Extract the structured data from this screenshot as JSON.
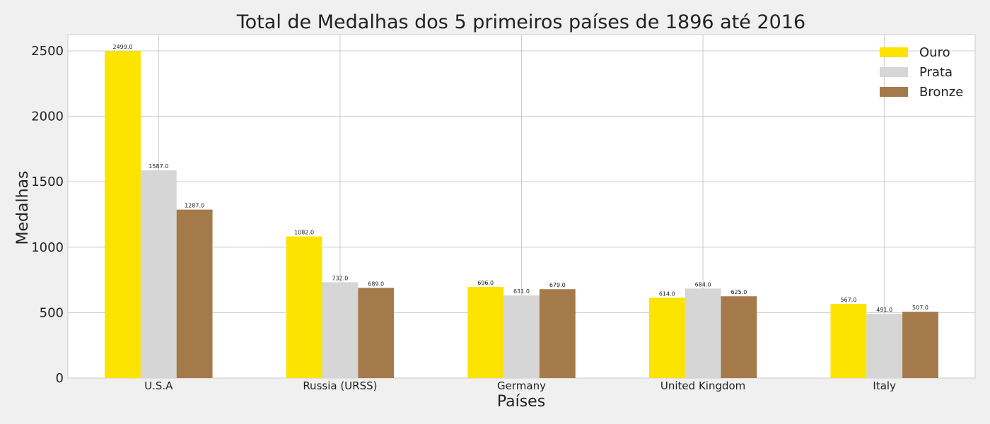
{
  "chart_data": {
    "type": "bar",
    "title": "Total de Medalhas dos 5 primeiros países de 1896 até 2016",
    "xlabel": "Países",
    "ylabel": "Medalhas",
    "categories": [
      "U.S.A",
      "Russia (URSS)",
      "Germany",
      "United Kingdom",
      "Italy"
    ],
    "series": [
      {
        "name": "Ouro",
        "color": "#fce300",
        "values": [
          2499,
          1082,
          696,
          614,
          567
        ],
        "labels": [
          "2499.0",
          "1082.0",
          "696.0",
          "614.0",
          "567.0"
        ]
      },
      {
        "name": "Prata",
        "color": "#d6d6d6",
        "values": [
          1587,
          732,
          631,
          684,
          491
        ],
        "labels": [
          "1587.0",
          "732.0",
          "631.0",
          "684.0",
          "491.0"
        ]
      },
      {
        "name": "Bronze",
        "color": "#a57a4a",
        "values": [
          1287,
          689,
          679,
          625,
          507
        ],
        "labels": [
          "1287.0",
          "689.0",
          "679.0",
          "625.0",
          "507.0"
        ]
      }
    ],
    "yticks": [
      0,
      500,
      1000,
      1500,
      2000,
      2500
    ],
    "ylim": [
      0,
      2624
    ],
    "grid": true,
    "legend_position": "top-right"
  }
}
